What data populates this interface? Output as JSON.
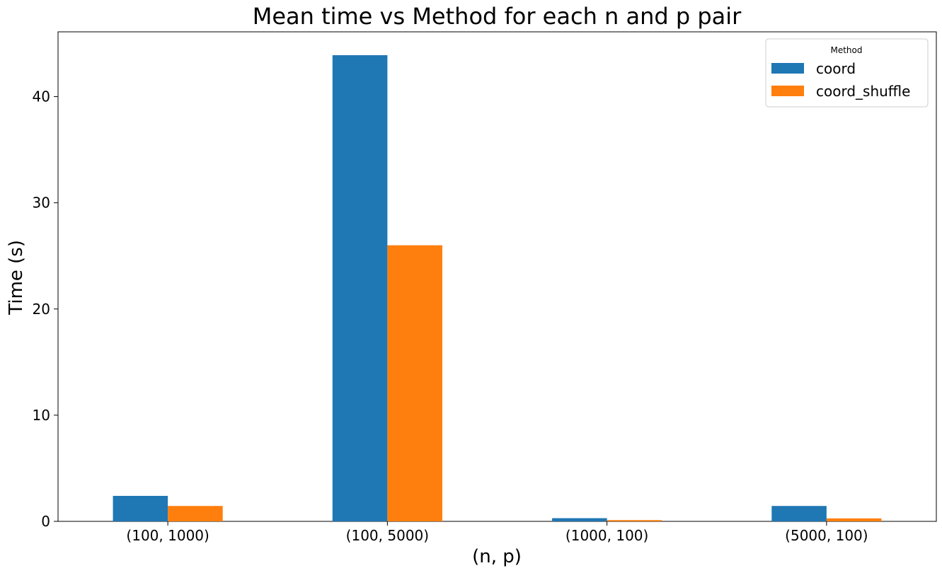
{
  "chart_data": {
    "type": "bar",
    "title": "Mean time vs Method for each n and p pair",
    "xlabel": "(n, p)",
    "ylabel": "Time (s)",
    "categories": [
      "(100, 1000)",
      "(100, 5000)",
      "(1000, 100)",
      "(5000, 100)"
    ],
    "series": [
      {
        "name": "coord",
        "color": "#1f77b4",
        "values": [
          2.4,
          43.9,
          0.3,
          1.45
        ]
      },
      {
        "name": "coord_shuffle",
        "color": "#ff7f0e",
        "values": [
          1.45,
          26.0,
          0.12,
          0.28
        ]
      }
    ],
    "ylim": [
      0,
      46.1
    ],
    "yticks": [
      0,
      10,
      20,
      30,
      40
    ],
    "grid": false,
    "legend": {
      "title": "Method",
      "placement": "top-right"
    }
  }
}
